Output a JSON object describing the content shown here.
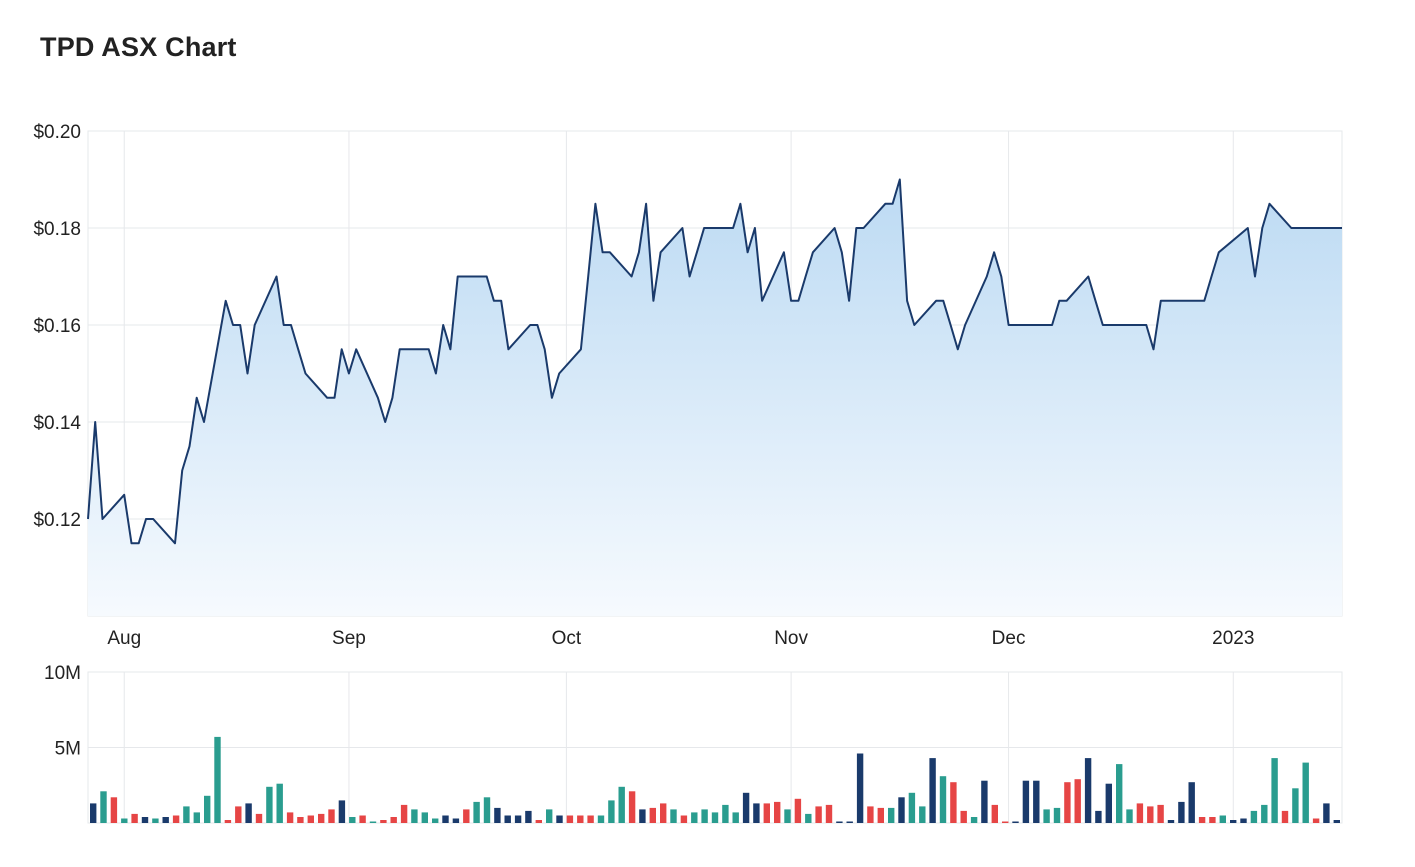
{
  "header": {
    "title": "TPD ASX Chart"
  },
  "chart_data": [
    {
      "type": "area",
      "title": "TPD ASX Chart",
      "ylabel": "",
      "xlabel": "",
      "ylim": [
        0.1,
        0.2
      ],
      "y_ticks": [
        {
          "value": 0.2,
          "label": "$0.20"
        },
        {
          "value": 0.18,
          "label": "$0.18"
        },
        {
          "value": 0.16,
          "label": "$0.16"
        },
        {
          "value": 0.14,
          "label": "$0.14"
        },
        {
          "value": 0.12,
          "label": "$0.12"
        }
      ],
      "x_ticks": [
        {
          "date": "2022-08-01",
          "label": "Aug"
        },
        {
          "date": "2022-09-01",
          "label": "Sep"
        },
        {
          "date": "2022-10-01",
          "label": "Oct"
        },
        {
          "date": "2022-11-01",
          "label": "Nov"
        },
        {
          "date": "2022-12-01",
          "label": "Dec"
        },
        {
          "date": "2023-01-01",
          "label": "2023"
        }
      ],
      "grid": true,
      "line_color": "#1a3a6b",
      "fill_color_top": "#bcdaf3",
      "fill_color_bottom": "#f6fafe",
      "series": [
        {
          "x": [
            "2022-07-27",
            "2022-07-28",
            "2022-07-29",
            "2022-08-01",
            "2022-08-02",
            "2022-08-03",
            "2022-08-04",
            "2022-08-05",
            "2022-08-08",
            "2022-08-09",
            "2022-08-10",
            "2022-08-11",
            "2022-08-12",
            "2022-08-15",
            "2022-08-16",
            "2022-08-17",
            "2022-08-18",
            "2022-08-19",
            "2022-08-22",
            "2022-08-23",
            "2022-08-24",
            "2022-08-25",
            "2022-08-26",
            "2022-08-29",
            "2022-08-30",
            "2022-08-31",
            "2022-09-01",
            "2022-09-02",
            "2022-09-05",
            "2022-09-06",
            "2022-09-07",
            "2022-09-08",
            "2022-09-09",
            "2022-09-12",
            "2022-09-13",
            "2022-09-14",
            "2022-09-15",
            "2022-09-16",
            "2022-09-19",
            "2022-09-20",
            "2022-09-21",
            "2022-09-22",
            "2022-09-23",
            "2022-09-26",
            "2022-09-27",
            "2022-09-28",
            "2022-09-29",
            "2022-09-30",
            "2022-10-03",
            "2022-10-04",
            "2022-10-05",
            "2022-10-06",
            "2022-10-07",
            "2022-10-10",
            "2022-10-11",
            "2022-10-12",
            "2022-10-13",
            "2022-10-14",
            "2022-10-17",
            "2022-10-18",
            "2022-10-19",
            "2022-10-20",
            "2022-10-21",
            "2022-10-24",
            "2022-10-25",
            "2022-10-26",
            "2022-10-27",
            "2022-10-28",
            "2022-10-31",
            "2022-11-01",
            "2022-11-02",
            "2022-11-03",
            "2022-11-04",
            "2022-11-07",
            "2022-11-08",
            "2022-11-09",
            "2022-11-10",
            "2022-11-11",
            "2022-11-14",
            "2022-11-15",
            "2022-11-16",
            "2022-11-17",
            "2022-11-18",
            "2022-11-21",
            "2022-11-22",
            "2022-11-23",
            "2022-11-24",
            "2022-11-25",
            "2022-11-28",
            "2022-11-29",
            "2022-11-30",
            "2022-12-01",
            "2022-12-02",
            "2022-12-05",
            "2022-12-06",
            "2022-12-07",
            "2022-12-08",
            "2022-12-09",
            "2022-12-12",
            "2022-12-13",
            "2022-12-14",
            "2022-12-15",
            "2022-12-16",
            "2022-12-19",
            "2022-12-20",
            "2022-12-21",
            "2022-12-22",
            "2022-12-23",
            "2022-12-28",
            "2022-12-29",
            "2022-12-30",
            "2023-01-03",
            "2023-01-04",
            "2023-01-05",
            "2023-01-06",
            "2023-01-09",
            "2023-01-10",
            "2023-01-11",
            "2023-01-12",
            "2023-01-13",
            "2023-01-16"
          ],
          "values": [
            0.12,
            0.14,
            0.12,
            0.125,
            0.115,
            0.115,
            0.12,
            0.12,
            0.115,
            0.13,
            0.135,
            0.145,
            0.14,
            0.165,
            0.16,
            0.16,
            0.15,
            0.16,
            0.17,
            0.16,
            0.16,
            0.155,
            0.15,
            0.145,
            0.145,
            0.155,
            0.15,
            0.155,
            0.145,
            0.14,
            0.145,
            0.155,
            0.155,
            0.155,
            0.15,
            0.16,
            0.155,
            0.17,
            0.17,
            0.17,
            0.165,
            0.165,
            0.155,
            0.16,
            0.16,
            0.155,
            0.145,
            0.15,
            0.155,
            0.17,
            0.185,
            0.175,
            0.175,
            0.17,
            0.175,
            0.185,
            0.165,
            0.175,
            0.18,
            0.17,
            0.175,
            0.18,
            0.18,
            0.18,
            0.185,
            0.175,
            0.18,
            0.165,
            0.175,
            0.165,
            0.165,
            0.17,
            0.175,
            0.18,
            0.175,
            0.165,
            0.18,
            0.18,
            0.185,
            0.185,
            0.19,
            0.165,
            0.16,
            0.165,
            0.165,
            0.16,
            0.155,
            0.16,
            0.17,
            0.175,
            0.17,
            0.16,
            0.16,
            0.16,
            0.16,
            0.16,
            0.165,
            0.165,
            0.17,
            0.165,
            0.16,
            0.16,
            0.16,
            0.16,
            0.16,
            0.155,
            0.165,
            0.165,
            0.165,
            0.17,
            0.175,
            0.18,
            0.17,
            0.18,
            0.185,
            0.18,
            0.18,
            0.18,
            0.18,
            0.18,
            0.18
          ]
        }
      ]
    },
    {
      "type": "bar",
      "title": "",
      "ylim": [
        0,
        10000000
      ],
      "y_ticks": [
        {
          "value": 10000000,
          "label": "10M"
        },
        {
          "value": 5000000,
          "label": "5M"
        }
      ],
      "color_key": {
        "up": "#2a9d8f",
        "down": "#e64545",
        "flat": "#1a3a6b"
      },
      "series": [
        {
          "values": [
            1300000,
            2100000,
            1700000,
            300000,
            600000,
            400000,
            300000,
            400000,
            500000,
            1100000,
            700000,
            1800000,
            5700000,
            200000,
            1100000,
            1300000,
            600000,
            2400000,
            2600000,
            700000,
            400000,
            500000,
            600000,
            900000,
            1500000,
            400000,
            500000,
            100000,
            200000,
            400000,
            1200000,
            900000,
            700000,
            300000,
            500000,
            300000,
            900000,
            1400000,
            1700000,
            1000000,
            500000,
            500000,
            800000,
            200000,
            900000,
            500000,
            500000,
            500000,
            500000,
            500000,
            1500000,
            2400000,
            2100000,
            900000,
            1000000,
            1300000,
            900000,
            500000,
            700000,
            900000,
            700000,
            1200000,
            700000,
            2000000,
            1300000,
            1300000,
            1400000,
            900000,
            1600000,
            600000,
            1100000,
            1200000,
            100000,
            100000,
            4600000,
            1100000,
            1000000,
            1000000,
            1700000,
            2000000,
            1100000,
            4300000,
            3100000,
            2700000,
            800000,
            400000,
            2800000,
            1200000,
            100000,
            100000,
            2800000,
            2800000,
            900000,
            1000000,
            2700000,
            2900000,
            4300000,
            800000,
            2600000,
            3900000,
            900000,
            1300000,
            1100000,
            1200000,
            200000,
            1400000,
            2700000,
            400000,
            400000,
            500000,
            200000,
            300000,
            800000,
            1200000,
            4300000,
            800000,
            2300000,
            4000000,
            300000,
            1300000,
            200000
          ],
          "colors": [
            "flat",
            "up",
            "down",
            "up",
            "down",
            "flat",
            "up",
            "flat",
            "down",
            "up",
            "up",
            "up",
            "up",
            "down",
            "down",
            "flat",
            "down",
            "up",
            "up",
            "down",
            "down",
            "down",
            "down",
            "down",
            "flat",
            "up",
            "down",
            "up",
            "down",
            "down",
            "down",
            "up",
            "up",
            "up",
            "flat",
            "flat",
            "down",
            "up",
            "up",
            "flat",
            "flat",
            "flat",
            "flat",
            "down",
            "up",
            "flat",
            "down",
            "down",
            "down",
            "up",
            "up",
            "up",
            "down",
            "flat",
            "down",
            "down",
            "up",
            "down",
            "up",
            "up",
            "up",
            "up",
            "up",
            "flat",
            "flat",
            "down",
            "down",
            "up",
            "down",
            "up",
            "down",
            "down",
            "flat",
            "flat",
            "flat",
            "down",
            "down",
            "up",
            "flat",
            "up",
            "up",
            "flat",
            "up",
            "down",
            "down",
            "up",
            "flat",
            "down",
            "down",
            "flat",
            "flat",
            "flat",
            "up",
            "up",
            "down",
            "down",
            "flat",
            "flat",
            "flat",
            "up",
            "up",
            "down",
            "down",
            "down",
            "flat",
            "flat",
            "flat",
            "down",
            "down",
            "up",
            "flat",
            "flat",
            "up",
            "up",
            "up",
            "down",
            "up",
            "up",
            "down",
            "flat",
            "flat"
          ]
        }
      ]
    }
  ]
}
